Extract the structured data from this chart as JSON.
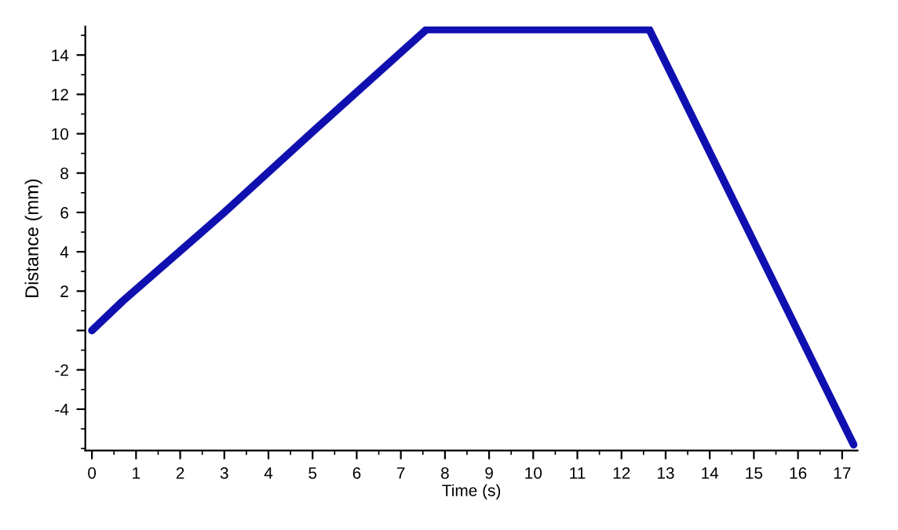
{
  "chart_data": {
    "type": "line",
    "xlabel": "Time (s)",
    "ylabel": "Distance (mm)",
    "x": [
      0,
      0.7,
      3,
      5,
      7.58,
      12.63,
      17.26
    ],
    "series": [
      {
        "color": "#1010b0",
        "values": [
          0,
          1.5,
          6,
          10.1,
          15.3,
          15.3,
          -5.8
        ]
      }
    ],
    "xlim": [
      -0.15,
      17.35
    ],
    "ylim": [
      -6.1,
      15.45
    ],
    "xticks": [
      0,
      1,
      2,
      3,
      4,
      5,
      6,
      7,
      8,
      9,
      10,
      11,
      12,
      13,
      14,
      15,
      16,
      17
    ],
    "yticks": [
      -4,
      -2,
      {
        "value": 0,
        "label": null
      },
      2,
      4,
      6,
      8,
      10,
      12,
      14
    ],
    "grid": false,
    "marker": "none",
    "line_style": "solid"
  }
}
